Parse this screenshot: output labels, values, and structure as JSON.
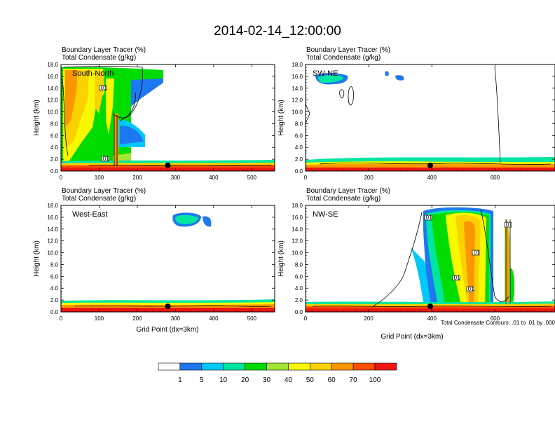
{
  "figure": {
    "title": "2014-02-14_12:00:00",
    "footnote": "Total Condensate Contours: .01 to .01 by .000"
  },
  "colorbar": {
    "labels": [
      "1",
      "5",
      "10",
      "20",
      "30",
      "40",
      "50",
      "60",
      "70",
      "100"
    ],
    "colors": [
      "#ffffff",
      "#1e78f0",
      "#00c8f8",
      "#00e6a0",
      "#00dc00",
      "#a0e632",
      "#f8f800",
      "#fad200",
      "#fa9600",
      "#fa5000",
      "#f01414"
    ]
  },
  "chart_data": [
    {
      "type": "heatmap",
      "panel_label": "South-North",
      "title_lines": [
        "Boundary Layer Tracer   (%)",
        "Total Condensate   (g/kg)"
      ],
      "xlabel": "",
      "ylabel": "Height (km)",
      "xlim": [
        0,
        560
      ],
      "ylim": [
        0,
        18
      ],
      "xticks": [
        0,
        100,
        200,
        300,
        400,
        500
      ],
      "yticks": [
        "0.0",
        "2.0",
        "4.0",
        "6.0",
        "8.0",
        "10.0",
        "12.0",
        "14.0",
        "16.0",
        "18.0"
      ],
      "marker_x": 280,
      "contour_labels": [
        ".01",
        ".01"
      ]
    },
    {
      "type": "heatmap",
      "panel_label": "SW-NE",
      "title_lines": [
        "Boundary Layer Tracer   (%)",
        "Total Condensate   (g/kg)"
      ],
      "xlabel": "",
      "ylabel": "Height (km)",
      "xlim": [
        0,
        790
      ],
      "ylim": [
        0,
        18
      ],
      "xticks": [
        0,
        200,
        400,
        600
      ],
      "yticks": [
        "0.0",
        "2.0",
        "4.0",
        "6.0",
        "8.0",
        "10.0",
        "12.0",
        "14.0",
        "16.0",
        "18.0"
      ],
      "marker_x": 395,
      "contour_labels": []
    },
    {
      "type": "heatmap",
      "panel_label": "West-East",
      "title_lines": [
        "Boundary Layer Tracer   (%)",
        "Total Condensate   (g/kg)"
      ],
      "xlabel": "Grid Point (dx=3km)",
      "ylabel": "Height (km)",
      "xlim": [
        0,
        560
      ],
      "ylim": [
        0,
        18
      ],
      "xticks": [
        0,
        100,
        200,
        300,
        400,
        500
      ],
      "yticks": [
        "0.0",
        "2.0",
        "4.0",
        "6.0",
        "8.0",
        "10.0",
        "12.0",
        "14.0",
        "16.0",
        "18.0"
      ],
      "marker_x": 280,
      "contour_labels": []
    },
    {
      "type": "heatmap",
      "panel_label": "NW-SE",
      "title_lines": [
        "Boundary Layer Tracer   (%)",
        "Total Condensate   (g/kg)"
      ],
      "xlabel": "Grid Point (dx=3km)",
      "ylabel": "Height (km)",
      "xlim": [
        0,
        790
      ],
      "ylim": [
        0,
        18
      ],
      "xticks": [
        0,
        200,
        400,
        600
      ],
      "yticks": [
        "0.0",
        "2.0",
        "4.0",
        "6.0",
        "8.0",
        "10.0",
        "12.0",
        "14.0",
        "16.0",
        "18.0"
      ],
      "marker_x": 395,
      "contour_labels": [
        ".01",
        ".01",
        ".01",
        ".01",
        ".01"
      ]
    }
  ]
}
